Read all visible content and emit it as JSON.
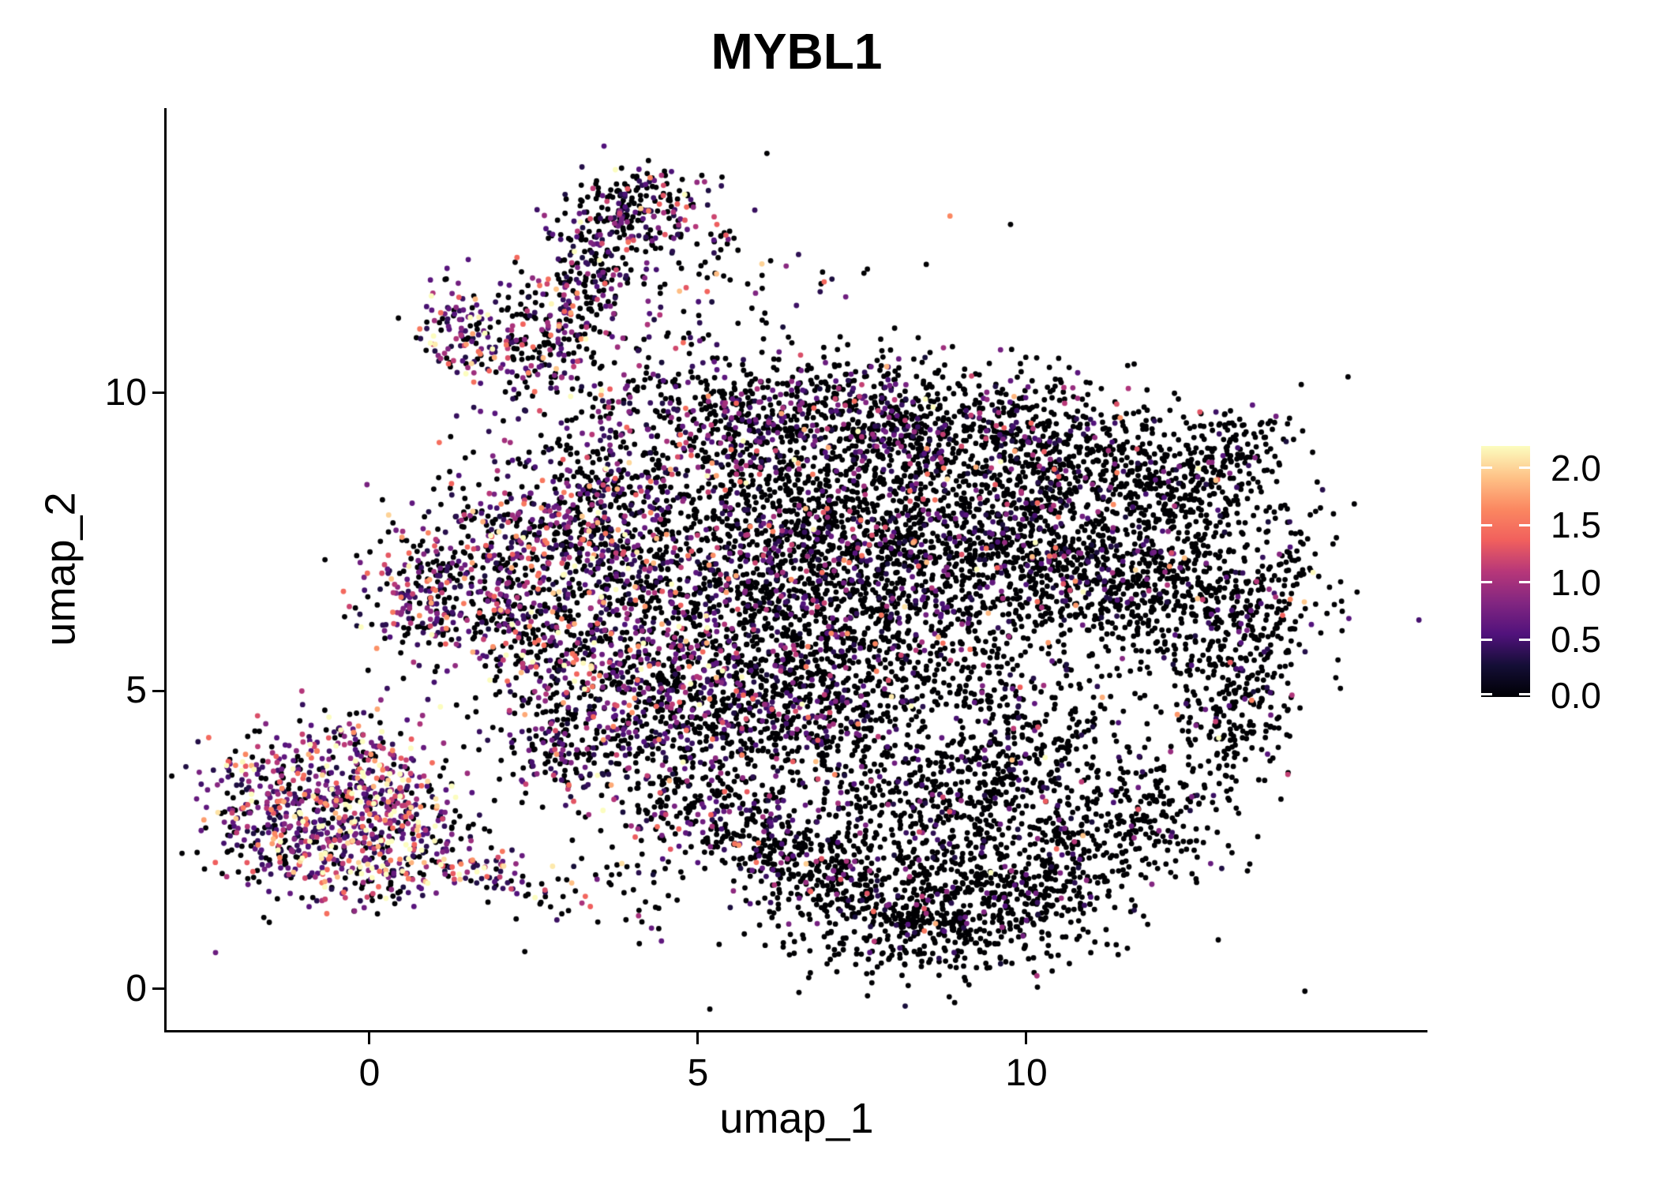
{
  "chart_data": {
    "type": "scatter",
    "title": "MYBL1",
    "xlabel": "umap_1",
    "ylabel": "umap_2",
    "xlim": [
      -3.1,
      16.1
    ],
    "ylim": [
      -0.7,
      14.8
    ],
    "x_ticks": [
      0,
      5,
      10
    ],
    "x_tick_labels": [
      "0",
      "5",
      "10"
    ],
    "y_ticks": [
      0,
      5,
      10
    ],
    "y_tick_labels": [
      "0",
      "5",
      "10"
    ],
    "grid": false,
    "legend_position": "right",
    "point_radius_px": 3.4,
    "seed": 1337,
    "colorbar": {
      "palette": "magma",
      "vmin": 0.0,
      "vmax": 2.19,
      "tick_values": [
        2.0,
        1.5,
        1.0,
        0.5,
        0.0
      ],
      "tick_labels": [
        "2.0",
        "1.5",
        "1.0",
        "0.5",
        "0.0"
      ],
      "stops": [
        [
          0.0,
          "#000004"
        ],
        [
          0.125,
          "#140e36"
        ],
        [
          0.25,
          "#51127c"
        ],
        [
          0.375,
          "#822681"
        ],
        [
          0.5,
          "#b73779"
        ],
        [
          0.625,
          "#f1605d"
        ],
        [
          0.75,
          "#fb8861"
        ],
        [
          0.875,
          "#fec287"
        ],
        [
          1.0,
          "#fcfdbf"
        ]
      ]
    },
    "clusters": [
      {
        "name": "lowleft-core-1",
        "x": -1.2,
        "y": 3.4,
        "sx": 0.75,
        "sy": 0.5,
        "n": 240,
        "p0": 0.22,
        "scale": 0.75
      },
      {
        "name": "lowleft-core-2",
        "x": -1.6,
        "y": 2.5,
        "sx": 0.5,
        "sy": 0.45,
        "n": 130,
        "p0": 0.3,
        "scale": 0.6
      },
      {
        "name": "lowleft-core-3",
        "x": -0.35,
        "y": 2.7,
        "sx": 0.6,
        "sy": 0.5,
        "n": 230,
        "p0": 0.18,
        "scale": 0.85
      },
      {
        "name": "lowleft-hot-core",
        "x": 0.3,
        "y": 3.1,
        "sx": 0.5,
        "sy": 0.45,
        "n": 150,
        "p0": 0.12,
        "scale": 1.05
      },
      {
        "name": "lowleft-top-fringe",
        "x": -0.1,
        "y": 4.15,
        "sx": 0.6,
        "sy": 0.3,
        "n": 80,
        "p0": 0.3,
        "scale": 0.7
      },
      {
        "name": "lowleft-right-fringe",
        "x": 0.5,
        "y": 2.0,
        "sx": 0.45,
        "sy": 0.3,
        "n": 70,
        "p0": 0.25,
        "scale": 0.9
      },
      {
        "name": "lowleft-bottom-fringe",
        "x": -0.5,
        "y": 1.9,
        "sx": 0.6,
        "sy": 0.3,
        "n": 70,
        "p0": 0.35,
        "scale": 0.6
      },
      {
        "name": "small-hot-clump",
        "x": 1.75,
        "y": 1.95,
        "sx": 0.3,
        "sy": 0.14,
        "n": 48,
        "p0": 0.15,
        "scale": 1.0
      },
      {
        "name": "bridge-clump",
        "x": 1.15,
        "y": 2.45,
        "sx": 0.35,
        "sy": 0.3,
        "n": 30,
        "p0": 0.5,
        "scale": 0.6
      },
      {
        "name": "sparse-above-lowleft",
        "x": 1.3,
        "y": 3.6,
        "sx": 0.6,
        "sy": 0.5,
        "n": 25,
        "p0": 0.55,
        "scale": 0.55
      },
      {
        "name": "arm-1",
        "x": 2.7,
        "y": 10.7,
        "sx": 0.55,
        "sy": 0.4,
        "n": 140,
        "p0": 0.5,
        "scale": 0.55,
        "angle": 40
      },
      {
        "name": "arm-2",
        "x": 3.2,
        "y": 11.7,
        "sx": 0.5,
        "sy": 0.45,
        "n": 150,
        "p0": 0.52,
        "scale": 0.55,
        "angle": 40
      },
      {
        "name": "arm-3",
        "x": 3.7,
        "y": 12.7,
        "sx": 0.5,
        "sy": 0.42,
        "n": 160,
        "p0": 0.55,
        "scale": 0.5,
        "angle": 35
      },
      {
        "name": "arm-tip",
        "x": 4.2,
        "y": 13.3,
        "sx": 0.5,
        "sy": 0.32,
        "n": 110,
        "p0": 0.6,
        "scale": 0.5,
        "angle": 20
      },
      {
        "name": "arm-offshoot",
        "x": 1.3,
        "y": 11.15,
        "sx": 0.32,
        "sy": 0.38,
        "n": 95,
        "p0": 0.3,
        "scale": 0.75
      },
      {
        "name": "arm-bridge",
        "x": 2.0,
        "y": 10.8,
        "sx": 0.4,
        "sy": 0.4,
        "n": 45,
        "p0": 0.5,
        "scale": 0.6
      },
      {
        "name": "arm-right-fringe",
        "x": 4.9,
        "y": 12.5,
        "sx": 0.5,
        "sy": 0.5,
        "n": 55,
        "p0": 0.65,
        "scale": 0.5
      },
      {
        "name": "arm-base",
        "x": 4.4,
        "y": 10.3,
        "sx": 0.75,
        "sy": 0.55,
        "n": 90,
        "p0": 0.65,
        "scale": 0.5
      },
      {
        "name": "sparse-top-gap",
        "x": 6.4,
        "y": 11.7,
        "sx": 1.1,
        "sy": 0.75,
        "n": 30,
        "p0": 0.6,
        "scale": 0.5
      },
      {
        "name": "top-band-1",
        "x": 5.4,
        "y": 9.3,
        "sx": 0.85,
        "sy": 0.6,
        "n": 360,
        "p0": 0.66,
        "scale": 0.5
      },
      {
        "name": "top-band-2",
        "x": 7.1,
        "y": 9.55,
        "sx": 0.95,
        "sy": 0.55,
        "n": 410,
        "p0": 0.74,
        "scale": 0.45
      },
      {
        "name": "top-band-3",
        "x": 8.9,
        "y": 9.35,
        "sx": 0.95,
        "sy": 0.55,
        "n": 410,
        "p0": 0.78,
        "scale": 0.45
      },
      {
        "name": "top-band-4",
        "x": 10.6,
        "y": 8.95,
        "sx": 0.85,
        "sy": 0.6,
        "n": 350,
        "p0": 0.82,
        "scale": 0.45
      },
      {
        "name": "top-band-5",
        "x": 12.0,
        "y": 8.45,
        "sx": 0.75,
        "sy": 0.6,
        "n": 290,
        "p0": 0.85,
        "scale": 0.45
      },
      {
        "name": "top-right-corner",
        "x": 13.1,
        "y": 9.0,
        "sx": 0.55,
        "sy": 0.5,
        "n": 130,
        "p0": 0.88,
        "scale": 0.45
      },
      {
        "name": "left-wedge",
        "x": 0.9,
        "y": 6.6,
        "sx": 0.55,
        "sy": 0.55,
        "n": 240,
        "p0": 0.42,
        "scale": 0.65
      },
      {
        "name": "left-1",
        "x": 2.2,
        "y": 7.4,
        "sx": 0.7,
        "sy": 0.75,
        "n": 350,
        "p0": 0.5,
        "scale": 0.6
      },
      {
        "name": "left-2",
        "x": 3.6,
        "y": 8.2,
        "sx": 0.7,
        "sy": 0.7,
        "n": 360,
        "p0": 0.6,
        "scale": 0.55
      },
      {
        "name": "left-3",
        "x": 2.8,
        "y": 5.9,
        "sx": 0.7,
        "sy": 0.75,
        "n": 350,
        "p0": 0.52,
        "scale": 0.65
      },
      {
        "name": "left-4",
        "x": 4.3,
        "y": 6.9,
        "sx": 0.8,
        "sy": 0.8,
        "n": 390,
        "p0": 0.64,
        "scale": 0.5
      },
      {
        "name": "left-5",
        "x": 4.1,
        "y": 4.9,
        "sx": 0.6,
        "sy": 0.65,
        "n": 280,
        "p0": 0.56,
        "scale": 0.65
      },
      {
        "name": "center-1",
        "x": 6.0,
        "y": 7.6,
        "sx": 0.9,
        "sy": 0.75,
        "n": 450,
        "p0": 0.76,
        "scale": 0.45
      },
      {
        "name": "center-2",
        "x": 7.7,
        "y": 7.9,
        "sx": 0.9,
        "sy": 0.7,
        "n": 450,
        "p0": 0.8,
        "scale": 0.45
      },
      {
        "name": "center-3",
        "x": 6.4,
        "y": 5.9,
        "sx": 0.9,
        "sy": 0.85,
        "n": 460,
        "p0": 0.74,
        "scale": 0.5
      },
      {
        "name": "center-4",
        "x": 8.1,
        "y": 6.3,
        "sx": 0.9,
        "sy": 0.85,
        "n": 480,
        "p0": 0.84,
        "scale": 0.45
      },
      {
        "name": "center-5",
        "x": 9.6,
        "y": 7.4,
        "sx": 0.9,
        "sy": 0.75,
        "n": 460,
        "p0": 0.85,
        "scale": 0.45
      },
      {
        "name": "center-6",
        "x": 5.3,
        "y": 4.7,
        "sx": 0.7,
        "sy": 0.65,
        "n": 340,
        "p0": 0.68,
        "scale": 0.5
      },
      {
        "name": "center-7",
        "x": 6.9,
        "y": 4.5,
        "sx": 0.8,
        "sy": 0.7,
        "n": 360,
        "p0": 0.78,
        "scale": 0.45
      },
      {
        "name": "right-1",
        "x": 10.9,
        "y": 6.9,
        "sx": 0.8,
        "sy": 0.65,
        "n": 380,
        "p0": 0.88,
        "scale": 0.42
      },
      {
        "name": "right-2",
        "x": 12.3,
        "y": 6.8,
        "sx": 0.7,
        "sy": 0.65,
        "n": 320,
        "p0": 0.9,
        "scale": 0.42
      },
      {
        "name": "right-edge-arc",
        "x": 13.3,
        "y": 5.7,
        "sx": 0.5,
        "sy": 0.8,
        "n": 210,
        "p0": 0.9,
        "scale": 0.42
      },
      {
        "name": "far-right-bump",
        "x": 14.0,
        "y": 6.9,
        "sx": 0.4,
        "sy": 0.7,
        "n": 110,
        "p0": 0.92,
        "scale": 0.4
      },
      {
        "name": "right-lower",
        "x": 13.0,
        "y": 4.3,
        "sx": 0.45,
        "sy": 0.6,
        "n": 150,
        "p0": 0.9,
        "scale": 0.42
      },
      {
        "name": "bottom-right-1",
        "x": 11.9,
        "y": 2.9,
        "sx": 0.6,
        "sy": 0.5,
        "n": 180,
        "p0": 0.9,
        "scale": 0.42,
        "angle": -35
      },
      {
        "name": "bottom-right-2",
        "x": 10.7,
        "y": 2.2,
        "sx": 0.65,
        "sy": 0.5,
        "n": 200,
        "p0": 0.88,
        "scale": 0.45,
        "angle": -30
      },
      {
        "name": "bottom-1",
        "x": 9.4,
        "y": 1.5,
        "sx": 0.85,
        "sy": 0.55,
        "n": 360,
        "p0": 0.9,
        "scale": 0.42
      },
      {
        "name": "bottom-2",
        "x": 8.1,
        "y": 1.1,
        "sx": 0.7,
        "sy": 0.45,
        "n": 280,
        "p0": 0.87,
        "scale": 0.45
      },
      {
        "name": "bottom-3",
        "x": 6.9,
        "y": 1.9,
        "sx": 0.7,
        "sy": 0.5,
        "n": 270,
        "p0": 0.84,
        "scale": 0.45
      },
      {
        "name": "bottom-4",
        "x": 8.6,
        "y": 3.0,
        "sx": 0.95,
        "sy": 0.65,
        "n": 380,
        "p0": 0.86,
        "scale": 0.45
      },
      {
        "name": "bottom-5",
        "x": 9.9,
        "y": 4.2,
        "sx": 0.85,
        "sy": 0.75,
        "n": 380,
        "p0": 0.88,
        "scale": 0.45
      },
      {
        "name": "diag-arm-1",
        "x": 2.9,
        "y": 4.0,
        "sx": 0.5,
        "sy": 0.45,
        "n": 150,
        "p0": 0.58,
        "scale": 0.6,
        "angle": -30
      },
      {
        "name": "diag-arm-2",
        "x": 4.6,
        "y": 3.1,
        "sx": 0.8,
        "sy": 0.4,
        "n": 190,
        "p0": 0.72,
        "scale": 0.5,
        "angle": -25
      },
      {
        "name": "diag-arm-3",
        "x": 6.0,
        "y": 2.6,
        "sx": 0.6,
        "sy": 0.4,
        "n": 150,
        "p0": 0.8,
        "scale": 0.45,
        "angle": -20
      },
      {
        "name": "sparse-below-diag",
        "x": 3.4,
        "y": 1.7,
        "sx": 0.8,
        "sy": 0.45,
        "n": 70,
        "p0": 0.65,
        "scale": 0.55
      },
      {
        "name": "halo-noise",
        "x": 8.0,
        "y": 5.8,
        "sx": 3.3,
        "sy": 2.7,
        "n": 200,
        "p0": 0.86,
        "scale": 0.45
      }
    ]
  },
  "colors": {
    "background": "#ffffff",
    "axis": "#000000",
    "text": "#000000",
    "zero_expression": "#000004",
    "max_expression": "#fcfdbf"
  }
}
